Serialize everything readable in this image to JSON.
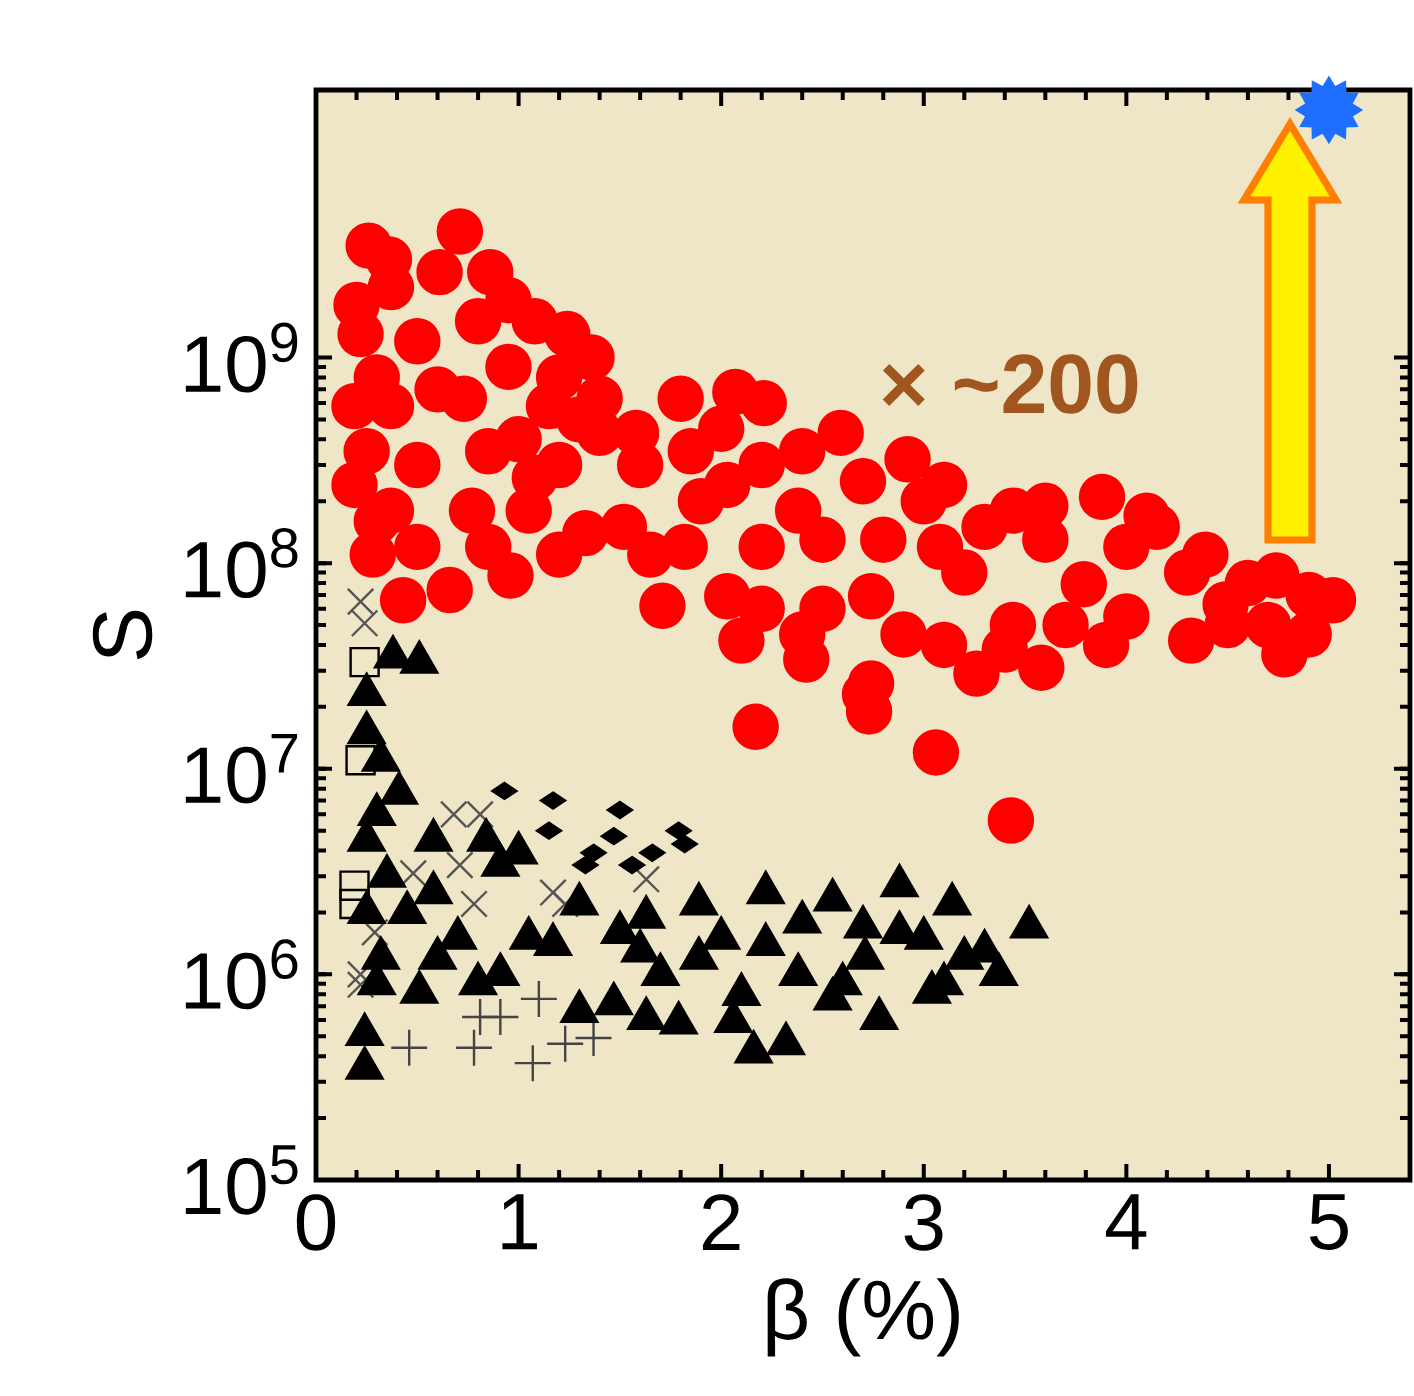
{
  "chart_data": {
    "type": "scatter",
    "xlabel": "β (%)",
    "ylabel": "S",
    "annotations": [
      "× ~200"
    ],
    "xlim": [
      0,
      5.4
    ],
    "ylim": [
      100000,
      20000000000
    ],
    "log": "y",
    "xticks": [
      0,
      1,
      2,
      3,
      4,
      5
    ],
    "yticks": [
      {
        "value": 100000,
        "label": "10$^{5}$"
      },
      {
        "value": 1000000,
        "label": "10$^{6}$"
      },
      {
        "value": 10000000,
        "label": "10$^{7}$"
      },
      {
        "value": 100000000,
        "label": "10$^{8}$"
      },
      {
        "value": 1000000000,
        "label": "10$^{9}$"
      }
    ],
    "series": [
      {
        "color": "#ff0000",
        "marker": "circle",
        "x": [
          0.26,
          0.36,
          0.37,
          0.71,
          0.61,
          0.86,
          0.95,
          1.08,
          1.24,
          1.36,
          0.22,
          1.4,
          1.4,
          1.58,
          1.8,
          2.07,
          2.21,
          2.59,
          2.92,
          3.1,
          3.44,
          3.88,
          4.15,
          4.39,
          4.74,
          5.02,
          4.78,
          4.32,
          3.9,
          3.58,
          3.26,
          2.74,
          2.42,
          2.1,
          2.03,
          1.71,
          1.82,
          1.52,
          1.33,
          0.96,
          0.66,
          0.43,
          0.28,
          0.19,
          0.19,
          0.73,
          1.08,
          0.77,
          2.38,
          3.08,
          3.79,
          2.74,
          3.44,
          2.03,
          4.49,
          1.15,
          0.37,
          0.37,
          2.17,
          2.71,
          2.73,
          3.06,
          3.43,
          0.2,
          0.3,
          0.25,
          0.3,
          0.5,
          0.5,
          0.5,
          0.6,
          0.8,
          0.85,
          0.85,
          0.95,
          1.0,
          1.05,
          1.2,
          1.2,
          1.2,
          1.3,
          1.6,
          1.65,
          1.85,
          1.9,
          2.0,
          2.2,
          2.2,
          2.2,
          2.4,
          2.5,
          2.5,
          2.4,
          2.7,
          2.8,
          2.9,
          3.0,
          3.2,
          3.1,
          3.3,
          3.4,
          3.6,
          3.7,
          3.6,
          4.0,
          4.0,
          4.1,
          4.3,
          4.5,
          4.6,
          4.7,
          4.9,
          4.9
        ],
        "values": [
          3500000000.0,
          3000000000.0,
          2200000000.0,
          4100000000.0,
          2600000000.0,
          2600000000.0,
          1900000000.0,
          1500000000.0,
          1300000000.0,
          1000000000.0,
          1300000000.0,
          630000000.0,
          430000000.0,
          430000000.0,
          630000000.0,
          680000000.0,
          600000000.0,
          430000000.0,
          320000000.0,
          240000000.0,
          180000000.0,
          210000000.0,
          150000000.0,
          110000000.0,
          87000000.0,
          66000000.0,
          36000000.0,
          42000000.0,
          40000000.0,
          31000000.0,
          29000000.0,
          26000000.0,
          34000000.0,
          42000000.0,
          69000000.0,
          62000000.0,
          120000000.0,
          150000000.0,
          140000000.0,
          87000000.0,
          74000000.0,
          66000000.0,
          110000000.0,
          240000000.0,
          580000000.0,
          630000000.0,
          260000000.0,
          180000000.0,
          180000000.0,
          120000000.0,
          79000000.0,
          69000000.0,
          50000000.0,
          240000000.0,
          63000000.0,
          580000000.0,
          580000000.0,
          180000000.0,
          16000000.0,
          23000000.0,
          19000000.0,
          12000000.0,
          5600000.0,
          1800000000.0,
          800000000.0,
          350000000.0,
          160000000.0,
          1200000000.0,
          300000000.0,
          120000000.0,
          700000000.0,
          1500000000.0,
          350000000.0,
          120000000.0,
          900000000.0,
          400000000.0,
          180000000.0,
          800000000.0,
          300000000.0,
          110000000.0,
          500000000.0,
          300000000.0,
          110000000.0,
          350000000.0,
          200000000.0,
          450000000.0,
          300000000.0,
          120000000.0,
          60000000.0,
          350000000.0,
          130000000.0,
          60000000.0,
          45000000.0,
          250000000.0,
          130000000.0,
          45000000.0,
          200000000.0,
          90000000.0,
          40000000.0,
          150000000.0,
          38000000.0,
          130000000.0,
          50000000.0,
          190000000.0,
          120000000.0,
          55000000.0,
          170000000.0,
          90000000.0,
          50000000.0,
          80000000.0,
          50000000.0,
          70000000.0,
          45000000.0
        ]
      },
      {
        "color": "#000000",
        "marker": "square",
        "x": [
          0.24,
          0.22,
          0.19,
          0.19
        ],
        "values": [
          33000000.0,
          11000000.0,
          2700000.0,
          2200000.0
        ]
      },
      {
        "color": "#555555",
        "marker": "cross",
        "x": [
          0.22,
          0.24,
          0.68,
          0.81,
          1.63,
          0.71,
          0.78,
          1.17,
          1.23,
          0.22,
          0.22,
          0.29,
          0.48
        ],
        "values": [
          65000000.0,
          51000000.0,
          6000000.0,
          6000000.0,
          2900000.0,
          3400000.0,
          2200000.0,
          2500000.0,
          2200000.0,
          1000000.0,
          890000.0,
          1600000.0,
          3100000.0
        ]
      },
      {
        "color": "#444444",
        "marker": "plus",
        "x": [
          0.46,
          0.78,
          0.81,
          1.07,
          1.1,
          1.23,
          1.37,
          0.91
        ],
        "values": [
          440000.0,
          440000.0,
          620000.0,
          370000.0,
          760000.0,
          460000.0,
          490000.0,
          620000.0
        ]
      },
      {
        "color": "#000000",
        "marker": "diamond",
        "x": [
          0.93,
          1.17,
          1.5,
          1.79,
          1.15,
          1.47,
          1.82,
          1.37,
          1.66,
          1.33,
          1.56
        ],
        "values": [
          7800000.0,
          7000000.0,
          6300000.0,
          5000000.0,
          5000000.0,
          4700000.0,
          4300000.0,
          3900000.0,
          3900000.0,
          3400000.0,
          3400000.0
        ]
      },
      {
        "color": "#000000",
        "marker": "triangle",
        "x": [
          0.38,
          0.51,
          0.25,
          0.32,
          0.41,
          0.25,
          0.58,
          0.84,
          1.0,
          0.91,
          0.58,
          1.3,
          1.17,
          0.32,
          0.51,
          0.91,
          1.3,
          0.24,
          0.24,
          1.5,
          1.63,
          1.89,
          2.22,
          2.55,
          2.88,
          3.14,
          3.52,
          3.37,
          3.04,
          2.78,
          2.32,
          2.16,
          2.06,
          1.79,
          1.63,
          1.47,
          1.89,
          2.38,
          2.71,
          3.2,
          2.22,
          2.88,
          2.55,
          1.7,
          2.0,
          2.4,
          2.7,
          3.0,
          3.3,
          2.1,
          2.6,
          3.1,
          1.6,
          0.25,
          0.3,
          0.35,
          0.45,
          0.7,
          0.8,
          0.6,
          1.05,
          0.25,
          0.3
        ],
        "values": [
          35000000.0,
          33000000.0,
          23000000.0,
          11000000.0,
          7600000.0,
          4500000.0,
          4500000.0,
          4500000.0,
          3900000.0,
          3400000.0,
          2500000.0,
          2200000.0,
          1400000.0,
          1200000.0,
          820000.0,
          1000000.0,
          660000.0,
          510000.0,
          350000.0,
          1600000.0,
          1900000.0,
          2200000.0,
          2500000.0,
          2300000.0,
          2700000.0,
          2200000.0,
          1700000.0,
          1000000.0,
          820000.0,
          610000.0,
          460000.0,
          420000.0,
          590000.0,
          580000.0,
          610000.0,
          720000.0,
          1200000.0,
          1000000.0,
          1200000.0,
          1200000.0,
          1400000.0,
          1600000.0,
          760000.0,
          1000000.0,
          1500000.0,
          1800000.0,
          1700000.0,
          1500000.0,
          1300000.0,
          800000.0,
          900000.0,
          900000.0,
          1300000.0,
          15000000.0,
          6000000.0,
          3000000.0,
          2000000.0,
          1500000.0,
          900000.0,
          1200000.0,
          1500000.0,
          2000000.0,
          900000.0
        ]
      },
      {
        "color": "#1e6fff",
        "marker": "star",
        "x": [
          5.0
        ],
        "values": [
          16000000000.0
        ]
      }
    ]
  }
}
